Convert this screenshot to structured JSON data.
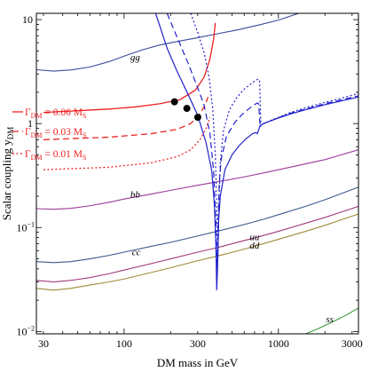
{
  "chart_data": {
    "type": "line",
    "xlabel": "DM mass in GeV",
    "ylabel": "Scalar coupling y",
    "ylabel_sub": "DM",
    "x_scale": "log",
    "y_scale": "log",
    "xlim": [
      27,
      3300
    ],
    "ylim": [
      0.0095,
      11.5
    ],
    "x_ticks": [
      {
        "value": 30,
        "label": "30"
      },
      {
        "value": 100,
        "label": "100"
      },
      {
        "value": 300,
        "label": "300"
      },
      {
        "value": 1000,
        "label": "1000"
      },
      {
        "value": 3000,
        "label": "3000"
      }
    ],
    "y_ticks": [
      {
        "value": 10,
        "label": "10"
      },
      {
        "value": 1,
        "label": "1"
      },
      {
        "value": 0.1,
        "label": "10",
        "exp": "−1"
      },
      {
        "value": 0.01,
        "label": "10",
        "exp": "−2"
      }
    ],
    "grid": false,
    "channel_curves": [
      {
        "label": "gg",
        "color": "#3a4a9a",
        "label_at": [
          118,
          4.05
        ],
        "x": [
          27,
          35,
          45,
          60,
          80,
          100,
          130,
          170,
          220,
          300,
          400,
          550,
          750,
          1000,
          1600
        ],
        "y": [
          3.3,
          3.2,
          3.28,
          3.5,
          3.95,
          4.45,
          5.1,
          5.7,
          6.15,
          6.7,
          7.3,
          8.0,
          8.9,
          9.9,
          12.5
        ]
      },
      {
        "label": "bb",
        "color": "#9a3a9a",
        "label_at": [
          118,
          0.195
        ],
        "x": [
          27,
          35,
          45,
          60,
          80,
          100,
          150,
          200,
          300,
          400,
          600,
          800,
          1000,
          1500,
          2000,
          3300
        ],
        "y": [
          0.152,
          0.15,
          0.153,
          0.162,
          0.175,
          0.188,
          0.21,
          0.228,
          0.255,
          0.275,
          0.307,
          0.335,
          0.36,
          0.41,
          0.45,
          0.56
        ]
      },
      {
        "label": "cc",
        "color": "#3a5a8a",
        "label_at": [
          120,
          0.054
        ],
        "x": [
          27,
          35,
          45,
          60,
          80,
          100,
          150,
          200,
          300,
          400,
          600,
          800,
          1000,
          1500,
          2000,
          3300
        ],
        "y": [
          0.047,
          0.046,
          0.047,
          0.05,
          0.054,
          0.058,
          0.066,
          0.072,
          0.083,
          0.092,
          0.107,
          0.12,
          0.133,
          0.16,
          0.185,
          0.245
        ]
      },
      {
        "label": "uu",
        "color": "#a03a7a",
        "label_at": [
          700,
          0.076
        ],
        "x": [
          27,
          35,
          45,
          60,
          80,
          100,
          150,
          200,
          300,
          400,
          600,
          800,
          1000,
          1500,
          2000,
          3300
        ],
        "y": [
          0.031,
          0.03,
          0.031,
          0.033,
          0.036,
          0.039,
          0.045,
          0.05,
          0.058,
          0.064,
          0.075,
          0.084,
          0.092,
          0.11,
          0.125,
          0.16
        ]
      },
      {
        "label": "dd",
        "color": "#a08a3a",
        "label_at": [
          700,
          0.063
        ],
        "x": [
          27,
          35,
          45,
          60,
          80,
          100,
          150,
          200,
          300,
          400,
          600,
          800,
          1000,
          1500,
          2000,
          3300
        ],
        "y": [
          0.026,
          0.025,
          0.026,
          0.028,
          0.03,
          0.032,
          0.037,
          0.041,
          0.048,
          0.053,
          0.062,
          0.07,
          0.077,
          0.092,
          0.105,
          0.135
        ]
      },
      {
        "label": "ss",
        "color": "#3a9a3a",
        "label_at": [
          2150,
          0.0123
        ],
        "x": [
          1500,
          1800,
          2200,
          2700,
          3300
        ],
        "y": [
          0.0095,
          0.0106,
          0.0122,
          0.0142,
          0.0168
        ]
      }
    ],
    "width_series": [
      {
        "name": "Γ",
        "name_sub": "DM",
        "coef": " = 0.06 M",
        "coef_sub": "S",
        "dash": "solid",
        "red": {
          "x": [
            30,
            50,
            80,
            120,
            170,
            230,
            290,
            330,
            360,
            380,
            390
          ],
          "y": [
            1.28,
            1.33,
            1.38,
            1.45,
            1.55,
            1.7,
            2.1,
            2.8,
            4.2,
            6.5,
            9.3
          ]
        },
        "blue": {
          "x": [
            160,
            190,
            220,
            260,
            300,
            340,
            370,
            385,
            393,
            398,
            403,
            410,
            420,
            450,
            500,
            560,
            620,
            680,
            710,
            730,
            760,
            800,
            900,
            1000,
            1200,
            1500,
            2000,
            2500,
            3300
          ],
          "y": [
            11.5,
            5.3,
            3.2,
            1.9,
            1.2,
            0.65,
            0.35,
            0.16,
            0.07,
            0.025,
            0.04,
            0.12,
            0.2,
            0.36,
            0.5,
            0.62,
            0.72,
            0.8,
            0.82,
            0.8,
            0.95,
            1.0,
            1.07,
            1.13,
            1.24,
            1.36,
            1.52,
            1.64,
            1.8
          ]
        }
      },
      {
        "name": "Γ",
        "name_sub": "DM",
        "coef": " = 0.03 M",
        "coef_sub": "S",
        "dash": "dashed",
        "red": {
          "x": [
            30,
            80,
            150,
            220,
            270,
            305,
            330,
            350
          ],
          "y": [
            0.7,
            0.74,
            0.8,
            0.88,
            1.0,
            1.2,
            1.45,
            1.8
          ]
        },
        "blue": {
          "x": [
            190,
            220,
            260,
            300,
            330,
            360,
            380,
            393,
            400,
            406,
            413,
            425,
            460,
            520,
            580,
            640,
            700,
            730,
            745,
            760,
            800,
            900,
            1000,
            1200,
            1500,
            2000,
            2500,
            3300
          ],
          "y": [
            11.5,
            6.8,
            3.8,
            2.2,
            1.5,
            0.8,
            0.35,
            0.11,
            0.04,
            0.1,
            0.26,
            0.45,
            0.75,
            1.02,
            1.22,
            1.38,
            1.52,
            1.58,
            1.55,
            0.95,
            1.0,
            1.07,
            1.14,
            1.26,
            1.38,
            1.55,
            1.68,
            1.85
          ]
        }
      },
      {
        "name": "Γ",
        "name_sub": "DM",
        "coef": " = 0.01 M",
        "coef_sub": "S",
        "dash": "dotted",
        "red": {
          "x": [
            30,
            80,
            150,
            220,
            270,
            310,
            340,
            360
          ],
          "y": [
            0.36,
            0.38,
            0.42,
            0.48,
            0.56,
            0.7,
            0.9,
            1.15
          ]
        },
        "blue": {
          "x": [
            270,
            300,
            330,
            355,
            375,
            390,
            400,
            405,
            412,
            420,
            440,
            480,
            540,
            600,
            660,
            710,
            740,
            755,
            770,
            800,
            900,
            1000,
            1200,
            1500,
            2000,
            2500,
            3300
          ],
          "y": [
            11.5,
            7.5,
            4.8,
            2.8,
            1.4,
            0.5,
            0.12,
            0.05,
            0.18,
            0.42,
            0.85,
            1.35,
            1.8,
            2.15,
            2.4,
            2.6,
            2.68,
            2.55,
            0.95,
            1.0,
            1.08,
            1.15,
            1.28,
            1.42,
            1.6,
            1.74,
            1.95
          ]
        }
      }
    ],
    "markers": {
      "x": [
        212,
        255,
        300
      ],
      "y": [
        1.62,
        1.4,
        1.15
      ]
    },
    "colors": {
      "red": "#ee2222",
      "blue": "#2222cc",
      "marker": "#000000",
      "frame": "#000000"
    }
  }
}
